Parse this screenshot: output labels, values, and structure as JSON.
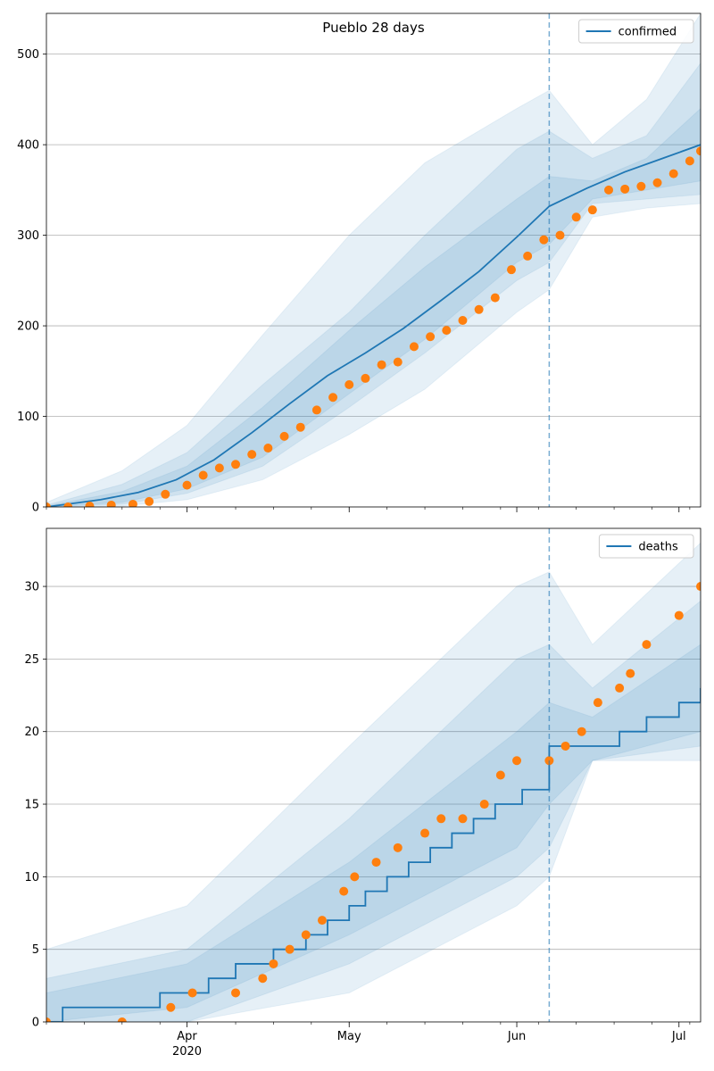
{
  "title": "Pueblo 28 days",
  "colors": {
    "line": "#1f77b4",
    "points": "#ff7f0e",
    "band": "#1f77b4",
    "grid": "#b0b0b0",
    "vline": "#1f77b4"
  },
  "x_axis": {
    "ticks": [
      {
        "date": "2020-04-01",
        "label": "Apr",
        "sublabel": "2020"
      },
      {
        "date": "2020-05-01",
        "label": "May",
        "sublabel": ""
      },
      {
        "date": "2020-06-01",
        "label": "Jun",
        "sublabel": ""
      },
      {
        "date": "2020-07-01",
        "label": "Jul",
        "sublabel": ""
      }
    ],
    "xlim": [
      "2020-03-06",
      "2020-07-05"
    ],
    "minor_ticks": "weekly"
  },
  "chart_data": [
    {
      "type": "line",
      "title": "Pueblo 28 days",
      "xlabel": "",
      "ylabel": "",
      "legend": {
        "entries": [
          "confirmed"
        ],
        "placement": "top-right"
      },
      "ylim": [
        0,
        545
      ],
      "yticks": [
        0,
        100,
        200,
        300,
        400,
        500
      ],
      "grid": "horizontal",
      "forecast_start": "2020-06-07",
      "series": [
        {
          "name": "confirmed",
          "kind": "model-median",
          "x": [
            "2020-03-06",
            "2020-03-16",
            "2020-03-23",
            "2020-03-30",
            "2020-04-06",
            "2020-04-13",
            "2020-04-20",
            "2020-04-27",
            "2020-05-04",
            "2020-05-11",
            "2020-05-18",
            "2020-05-25",
            "2020-06-01",
            "2020-06-07",
            "2020-06-14",
            "2020-06-21",
            "2020-06-28",
            "2020-07-05"
          ],
          "y": [
            0,
            8,
            16,
            30,
            52,
            82,
            114,
            145,
            170,
            197,
            228,
            260,
            298,
            332,
            352,
            370,
            385,
            400
          ]
        },
        {
          "name": "",
          "kind": "observed",
          "x": [
            "2020-03-06",
            "2020-03-10",
            "2020-03-14",
            "2020-03-18",
            "2020-03-22",
            "2020-03-25",
            "2020-03-28",
            "2020-04-01",
            "2020-04-04",
            "2020-04-07",
            "2020-04-10",
            "2020-04-13",
            "2020-04-16",
            "2020-04-19",
            "2020-04-22",
            "2020-04-25",
            "2020-04-28",
            "2020-05-01",
            "2020-05-04",
            "2020-05-07",
            "2020-05-10",
            "2020-05-13",
            "2020-05-16",
            "2020-05-19",
            "2020-05-22",
            "2020-05-25",
            "2020-05-28",
            "2020-05-31",
            "2020-06-03",
            "2020-06-06",
            "2020-06-09",
            "2020-06-12",
            "2020-06-15",
            "2020-06-18",
            "2020-06-21",
            "2020-06-24",
            "2020-06-27",
            "2020-06-30",
            "2020-07-03",
            "2020-07-05"
          ],
          "y": [
            0,
            0,
            1,
            2,
            3,
            6,
            14,
            24,
            35,
            43,
            47,
            58,
            65,
            78,
            88,
            107,
            121,
            135,
            142,
            157,
            160,
            177,
            188,
            195,
            206,
            218,
            231,
            262,
            277,
            295,
            300,
            320,
            328,
            350,
            351,
            354,
            358,
            368,
            382,
            393
          ]
        }
      ],
      "bands": [
        {
          "x": [
            "2020-03-06",
            "2020-03-20",
            "2020-04-01",
            "2020-04-15",
            "2020-05-01",
            "2020-05-15",
            "2020-06-01",
            "2020-06-07",
            "2020-06-15",
            "2020-06-25",
            "2020-07-05"
          ],
          "low": [
            0,
            1,
            8,
            30,
            80,
            130,
            215,
            240,
            320,
            330,
            335
          ],
          "high": [
            5,
            40,
            90,
            190,
            300,
            380,
            440,
            460,
            400,
            450,
            545
          ]
        },
        {
          "x": [
            "2020-03-06",
            "2020-03-20",
            "2020-04-01",
            "2020-04-15",
            "2020-05-01",
            "2020-05-15",
            "2020-06-01",
            "2020-06-07",
            "2020-06-15",
            "2020-06-25",
            "2020-07-05"
          ],
          "low": [
            0,
            3,
            15,
            45,
            110,
            170,
            250,
            270,
            335,
            340,
            345
          ],
          "high": [
            2,
            25,
            60,
            135,
            215,
            300,
            395,
            415,
            385,
            410,
            490
          ]
        },
        {
          "x": [
            "2020-03-06",
            "2020-03-20",
            "2020-04-01",
            "2020-04-15",
            "2020-05-01",
            "2020-05-15",
            "2020-06-01",
            "2020-06-07",
            "2020-06-15",
            "2020-06-25",
            "2020-07-05"
          ],
          "low": [
            0,
            5,
            20,
            55,
            125,
            185,
            270,
            290,
            340,
            350,
            360
          ],
          "high": [
            1,
            17,
            45,
            110,
            195,
            265,
            340,
            365,
            360,
            385,
            440
          ]
        }
      ]
    },
    {
      "type": "line",
      "title": "",
      "xlabel": "",
      "ylabel": "",
      "legend": {
        "entries": [
          "deaths"
        ],
        "placement": "top-right"
      },
      "ylim": [
        0,
        34
      ],
      "yticks": [
        0,
        5,
        10,
        15,
        20,
        25,
        30
      ],
      "grid": "horizontal",
      "forecast_start": "2020-06-07",
      "series": [
        {
          "name": "deaths",
          "kind": "model-median-step",
          "x": [
            "2020-03-06",
            "2020-03-09",
            "2020-03-27",
            "2020-04-05",
            "2020-04-10",
            "2020-04-17",
            "2020-04-23",
            "2020-04-27",
            "2020-05-01",
            "2020-05-04",
            "2020-05-08",
            "2020-05-12",
            "2020-05-16",
            "2020-05-20",
            "2020-05-24",
            "2020-05-28",
            "2020-06-02",
            "2020-06-07",
            "2020-06-14",
            "2020-06-20",
            "2020-06-25",
            "2020-07-01",
            "2020-07-05"
          ],
          "y": [
            0,
            1,
            2,
            3,
            4,
            5,
            6,
            7,
            8,
            9,
            10,
            11,
            12,
            13,
            14,
            15,
            16,
            19,
            19,
            20,
            21,
            22,
            23
          ]
        },
        {
          "name": "",
          "kind": "observed",
          "x": [
            "2020-03-06",
            "2020-03-20",
            "2020-03-29",
            "2020-04-02",
            "2020-04-10",
            "2020-04-15",
            "2020-04-17",
            "2020-04-20",
            "2020-04-23",
            "2020-04-26",
            "2020-04-30",
            "2020-05-02",
            "2020-05-06",
            "2020-05-10",
            "2020-05-15",
            "2020-05-18",
            "2020-05-22",
            "2020-05-26",
            "2020-05-29",
            "2020-06-01",
            "2020-06-07",
            "2020-06-10",
            "2020-06-13",
            "2020-06-16",
            "2020-06-20",
            "2020-06-22",
            "2020-06-25",
            "2020-07-01",
            "2020-07-05"
          ],
          "y": [
            0,
            0,
            1,
            2,
            2,
            3,
            4,
            5,
            6,
            7,
            9,
            10,
            11,
            12,
            13,
            14,
            14,
            15,
            17,
            18,
            18,
            19,
            20,
            22,
            23,
            24,
            26,
            28,
            30
          ]
        }
      ],
      "bands": [
        {
          "x": [
            "2020-03-06",
            "2020-04-01",
            "2020-05-01",
            "2020-06-01",
            "2020-06-07",
            "2020-06-15",
            "2020-07-05"
          ],
          "low": [
            0,
            0,
            2,
            8,
            10,
            18,
            18
          ],
          "high": [
            5,
            8,
            19,
            30,
            31,
            26,
            33
          ]
        },
        {
          "x": [
            "2020-03-06",
            "2020-04-01",
            "2020-05-01",
            "2020-06-01",
            "2020-06-07",
            "2020-06-15",
            "2020-07-05"
          ],
          "low": [
            0,
            0,
            4,
            10,
            12,
            18,
            19
          ],
          "high": [
            3,
            5,
            14,
            25,
            26,
            23,
            29
          ]
        },
        {
          "x": [
            "2020-03-06",
            "2020-04-01",
            "2020-05-01",
            "2020-06-01",
            "2020-06-07",
            "2020-06-15",
            "2020-07-05"
          ],
          "low": [
            0,
            1,
            6,
            12,
            15,
            18,
            20
          ],
          "high": [
            2,
            4,
            11,
            20,
            22,
            21,
            26
          ]
        }
      ]
    }
  ]
}
